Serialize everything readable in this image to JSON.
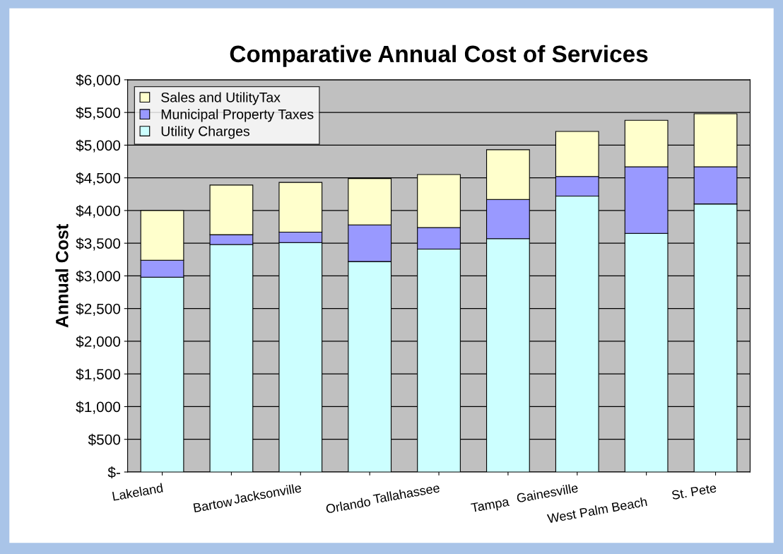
{
  "chart_data": {
    "type": "bar",
    "title": "Comparative Annual Cost of Services",
    "ylabel": "Annual Cost",
    "stacked": true,
    "categories": [
      "Lakeland",
      "Bartow",
      "Jacksonville",
      "Orlando",
      "Tallahassee",
      "Tampa",
      "Gainesville",
      "West Palm Beach",
      "St. Pete"
    ],
    "series": [
      {
        "name": "Utility Charges",
        "color": "#ccffff",
        "values": [
          2980,
          3480,
          3510,
          3220,
          3410,
          3570,
          4220,
          3650,
          4100
        ]
      },
      {
        "name": "Municipal Property Taxes",
        "color": "#9999ff",
        "values": [
          260,
          150,
          160,
          560,
          330,
          600,
          300,
          1020,
          570
        ]
      },
      {
        "name": "Sales and UtilityTax",
        "color": "#ffffcc",
        "values": [
          760,
          760,
          760,
          710,
          810,
          760,
          690,
          710,
          810
        ]
      }
    ],
    "ylim": [
      0,
      6000
    ],
    "yticks": [
      {
        "value": 0,
        "label": "$-"
      },
      {
        "value": 500,
        "label": "$500"
      },
      {
        "value": 1000,
        "label": "$1,000"
      },
      {
        "value": 1500,
        "label": "$1,500"
      },
      {
        "value": 2000,
        "label": "$2,000"
      },
      {
        "value": 2500,
        "label": "$2,500"
      },
      {
        "value": 3000,
        "label": "$3,000"
      },
      {
        "value": 3500,
        "label": "$3,500"
      },
      {
        "value": 4000,
        "label": "$4,000"
      },
      {
        "value": 4500,
        "label": "$4,500"
      },
      {
        "value": 5000,
        "label": "$5,000"
      },
      {
        "value": 5500,
        "label": "$5,500"
      },
      {
        "value": 6000,
        "label": "$6,000"
      }
    ],
    "grid": "y",
    "legend": "top left"
  }
}
